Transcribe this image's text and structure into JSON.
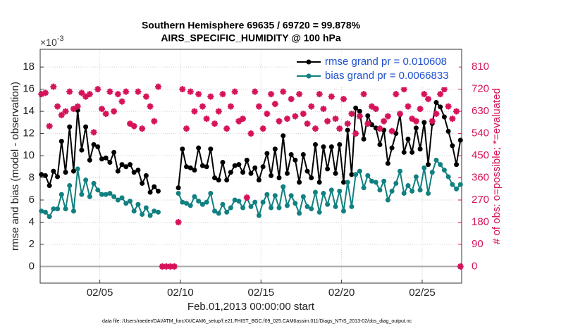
{
  "chart_data": {
    "type": "line",
    "title": "Southern Hemisphere 69635 / 69720 = 99.878%",
    "subtitle": "AIRS_SPECIFIC_HUMIDITY @ 100 hPa",
    "y_multiplier": {
      "base": "×10",
      "exponent": "-3"
    },
    "xlabel": "Feb.01,2013 00:00:00 start",
    "ylabel": "rmse and bias (model - observation)",
    "y2label": "# of obs: o=possible; *=evaluated",
    "footnote": "data file: /Users/raeder/DAI/ATM_forcXX/CAM6_setup/f.e21.FHIST_BGC.f09_025.CAM6assim.011/Diags_NTrS_2013-02/obs_diag_output.nc",
    "xlim": [
      0.3,
      26.45
    ],
    "xticks": [
      {
        "value": 4,
        "label": "02/05"
      },
      {
        "value": 9,
        "label": "02/10"
      },
      {
        "value": 14,
        "label": "02/15"
      },
      {
        "value": 19,
        "label": "02/20"
      },
      {
        "value": 24,
        "label": "02/25"
      }
    ],
    "ylim": [
      -1.5,
      19.6
    ],
    "yticks": [
      0,
      2,
      4,
      6,
      8,
      10,
      12,
      14,
      16,
      18
    ],
    "y2lim": [
      -67.5,
      882
    ],
    "y2ticks": [
      0,
      90,
      180,
      270,
      360,
      450,
      540,
      630,
      720,
      810
    ],
    "grid": true,
    "legend": "upper right",
    "x": [
      0.375,
      0.625,
      0.875,
      1.125,
      1.375,
      1.625,
      1.875,
      2.125,
      2.375,
      2.625,
      2.875,
      3.125,
      3.375,
      3.625,
      3.875,
      4.125,
      4.375,
      4.625,
      4.875,
      5.125,
      5.375,
      5.625,
      5.875,
      6.125,
      6.375,
      6.625,
      6.875,
      7.125,
      7.375,
      7.625,
      7.875,
      8.125,
      8.375,
      8.625,
      8.875,
      9.125,
      9.375,
      9.625,
      9.875,
      10.125,
      10.375,
      10.625,
      10.875,
      11.125,
      11.375,
      11.625,
      11.875,
      12.125,
      12.375,
      12.625,
      12.875,
      13.125,
      13.375,
      13.625,
      13.875,
      14.125,
      14.375,
      14.625,
      14.875,
      15.125,
      15.375,
      15.625,
      15.875,
      16.125,
      16.375,
      16.625,
      16.875,
      17.125,
      17.375,
      17.625,
      17.875,
      18.125,
      18.375,
      18.625,
      18.875,
      19.125,
      19.375,
      19.625,
      19.875,
      20.125,
      20.375,
      20.625,
      20.875,
      21.125,
      21.375,
      21.625,
      21.875,
      22.125,
      22.375,
      22.625,
      22.875,
      23.125,
      23.375,
      23.625,
      23.875,
      24.125,
      24.375,
      24.625,
      24.875,
      25.125,
      25.375,
      25.625,
      25.875,
      26.125,
      26.375
    ],
    "series": [
      {
        "name": "rmse grand pr = 0.010608",
        "color": "#000000",
        "marker": "circle",
        "values": [
          8.3,
          8.2,
          7.3,
          8.6,
          8.1,
          11.3,
          8.5,
          12.6,
          8.6,
          14.1,
          10.5,
          12.6,
          9.6,
          11.0,
          10.8,
          9.7,
          9.8,
          9.4,
          10.3,
          8.6,
          9.2,
          9.0,
          9.2,
          8.5,
          8.7,
          7.5,
          8.2,
          6.7,
          7.2,
          6.8,
          null,
          null,
          null,
          null,
          7.1,
          10.6,
          9.0,
          8.9,
          8.7,
          10.7,
          9.1,
          9.0,
          10.6,
          8.0,
          7.8,
          9.4,
          7.8,
          8.5,
          9.1,
          9.2,
          8.5,
          9.6,
          8.4,
          8.9,
          7.8,
          9.0,
          10.2,
          8.2,
          10.6,
          8.0,
          11.8,
          8.4,
          10.1,
          9.6,
          7.6,
          10.1,
          8.6,
          8.0,
          11.0,
          7.6,
          10.8,
          8.8,
          10.8,
          8.4,
          11.0,
          7.6,
          12.3,
          8.3,
          14.3,
          14.0,
          11.5,
          13.6,
          12.8,
          12.5,
          11.0,
          12.3,
          9.3,
          10.7,
          12.0,
          13.7,
          10.3,
          11.5,
          10.3,
          12.5,
          10.6,
          13.0,
          9.2,
          12.9,
          14.8,
          14.4,
          13.5,
          12.2,
          10.9,
          9.2,
          11.4
        ]
      },
      {
        "name": "bias grand pr = 0.0066833",
        "color": "#118080",
        "marker": "circle",
        "values": [
          5.0,
          4.9,
          4.5,
          5.2,
          5.2,
          6.5,
          5.2,
          7.3,
          5.0,
          8.8,
          6.5,
          7.8,
          6.3,
          7.5,
          6.9,
          6.5,
          6.5,
          6.6,
          6.3,
          6.0,
          6.2,
          5.7,
          5.9,
          5.0,
          5.6,
          4.7,
          5.3,
          4.6,
          5.0,
          4.9,
          null,
          null,
          null,
          null,
          6.6,
          5.8,
          5.7,
          5.5,
          6.3,
          5.9,
          5.6,
          5.8,
          6.6,
          5.0,
          4.8,
          5.6,
          4.9,
          5.3,
          6.0,
          5.9,
          5.3,
          6.2,
          5.4,
          5.8,
          4.6,
          5.8,
          6.5,
          5.3,
          6.4,
          5.3,
          7.2,
          5.5,
          6.4,
          5.7,
          4.8,
          6.3,
          5.4,
          5.2,
          6.7,
          4.9,
          6.6,
          5.6,
          6.9,
          5.4,
          6.8,
          5.0,
          7.6,
          5.4,
          8.3,
          8.6,
          7.1,
          8.2,
          7.7,
          7.6,
          6.9,
          7.7,
          6.0,
          6.8,
          7.5,
          8.6,
          6.6,
          7.3,
          6.8,
          8.1,
          6.9,
          8.9,
          6.6,
          8.5,
          9.6,
          9.2,
          8.7,
          8.1,
          7.4,
          7.0,
          7.4
        ]
      },
      {
        "color": "#d6125a",
        "marker": "star",
        "axis": "y2",
        "values": [
          700,
          705,
          570,
          730,
          650,
          615,
          630,
          710,
          640,
          650,
          705,
          690,
          700,
          545,
          720,
          640,
          620,
          710,
          630,
          700,
          670,
          710,
          580,
          570,
          710,
          560,
          690,
          650,
          590,
          730,
          0,
          0,
          0,
          0,
          180,
          720,
          560,
          710,
          630,
          700,
          650,
          600,
          690,
          580,
          630,
          700,
          560,
          650,
          710,
          590,
          600,
          280,
          540,
          710,
          650,
          560,
          620,
          700,
          660,
          590,
          710,
          600,
          680,
          610,
          700,
          620,
          580,
          650,
          560,
          700,
          640,
          590,
          690,
          600,
          560,
          680,
          580,
          620,
          540,
          610,
          700,
          580,
          650,
          640,
          560,
          590,
          610,
          550,
          700,
          620,
          720,
          650,
          600,
          590,
          640,
          700,
          680,
          590,
          620,
          700,
          720,
          650,
          600,
          630,
          0
        ]
      }
    ]
  }
}
